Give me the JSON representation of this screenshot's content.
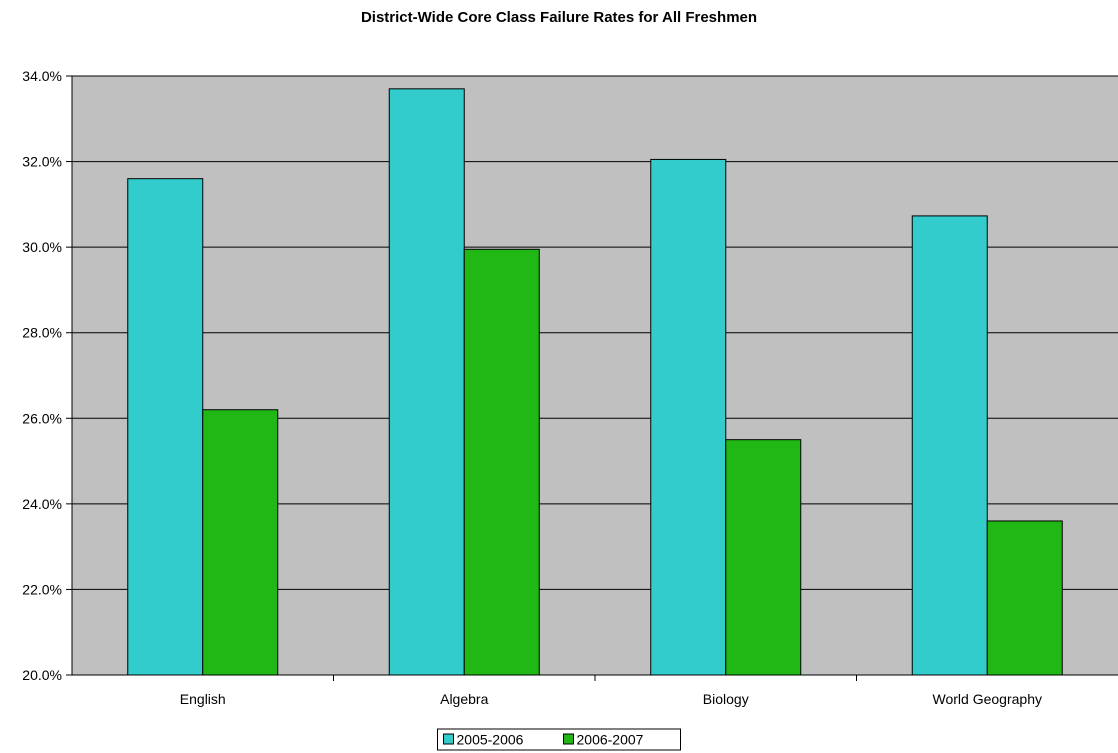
{
  "chart_data": {
    "type": "bar",
    "title": "District-Wide Core Class Failure Rates for All Freshmen",
    "categories": [
      "English",
      "Algebra",
      "Biology",
      "World Geography"
    ],
    "series": [
      {
        "name": "2005-2006",
        "color": "#33CCCC",
        "values": [
          31.6,
          33.7,
          32.05,
          30.73
        ]
      },
      {
        "name": "2006-2007",
        "color": "#21B714",
        "values": [
          26.2,
          29.95,
          25.5,
          23.6
        ]
      }
    ],
    "ylim": [
      20,
      34
    ],
    "yticks": [
      20,
      22,
      24,
      26,
      28,
      30,
      32,
      34
    ],
    "ytick_labels": [
      "20.0%",
      "22.0%",
      "24.0%",
      "26.0%",
      "28.0%",
      "30.0%",
      "32.0%",
      "34.0%"
    ],
    "xlabel": "",
    "ylabel": "",
    "grid": true,
    "plot_background": "#C0C0C0",
    "legend_position": "bottom-center"
  }
}
